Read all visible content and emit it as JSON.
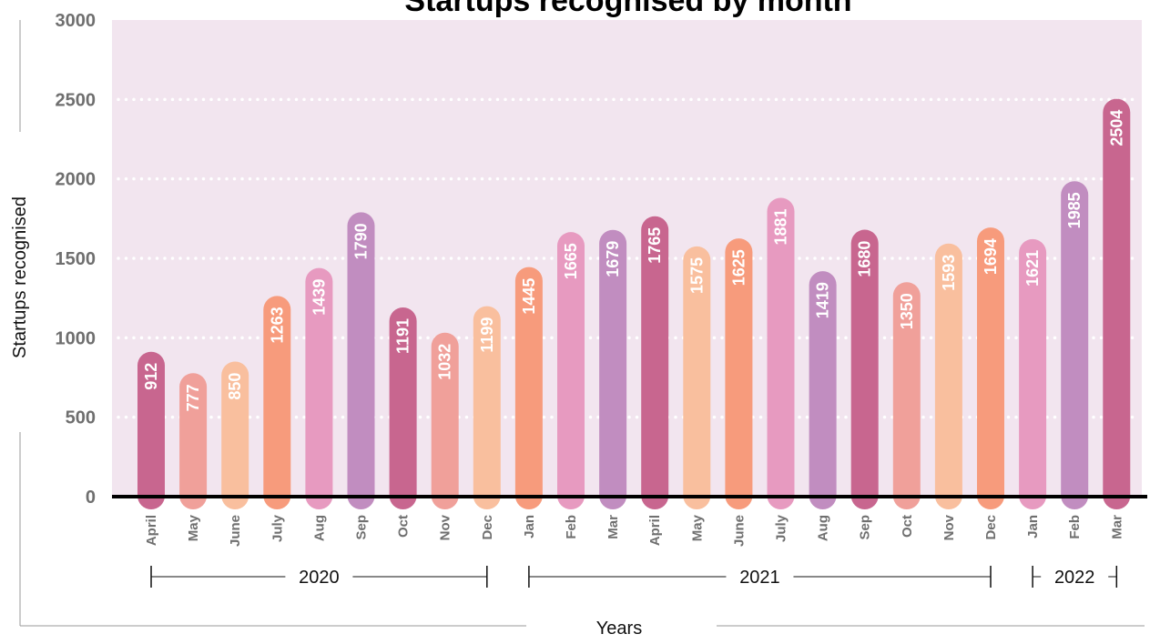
{
  "chart_data": {
    "type": "bar",
    "title": "Startups recognised by month",
    "xlabel": "Years",
    "ylabel": "Startups recognised",
    "ylim": [
      0,
      3000
    ],
    "yticks": [
      0,
      500,
      1000,
      1500,
      2000,
      2500,
      3000
    ],
    "grid": true,
    "legend": "none",
    "categories": [
      "April",
      "May",
      "June",
      "July",
      "Aug",
      "Sep",
      "Oct",
      "Nov",
      "Dec",
      "Jan",
      "Feb",
      "Mar",
      "April",
      "May",
      "June",
      "July",
      "Aug",
      "Sep",
      "Oct",
      "Nov",
      "Dec",
      "Jan",
      "Feb",
      "Mar"
    ],
    "values": [
      912,
      777,
      850,
      1263,
      1439,
      1790,
      1191,
      1032,
      1199,
      1445,
      1665,
      1679,
      1765,
      1575,
      1625,
      1881,
      1419,
      1680,
      1350,
      1593,
      1694,
      1621,
      1985,
      2504
    ],
    "bar_colors": [
      "#c8668f",
      "#f0a09a",
      "#f9bf9e",
      "#f79b7c",
      "#e79ac0",
      "#c18dc0",
      "#c8668f",
      "#f0a09a",
      "#f9bf9e",
      "#f79b7c",
      "#e79ac0",
      "#c18dc0",
      "#c8668f",
      "#f9bf9e",
      "#f79b7c",
      "#e79ac0",
      "#c18dc0",
      "#c8668f",
      "#f0a09a",
      "#f9bf9e",
      "#f79b7c",
      "#e79ac0",
      "#c18dc0",
      "#c8668f"
    ],
    "year_groups": [
      {
        "label": "2020",
        "start": 0,
        "end": 8
      },
      {
        "label": "2021",
        "start": 9,
        "end": 20
      },
      {
        "label": "2022",
        "start": 21,
        "end": 23
      }
    ]
  },
  "colors": {
    "plot_background": "#f2e5ef",
    "grid": "#ffffff",
    "baseline": "#000000",
    "tick_text": "#6f6f6f"
  }
}
